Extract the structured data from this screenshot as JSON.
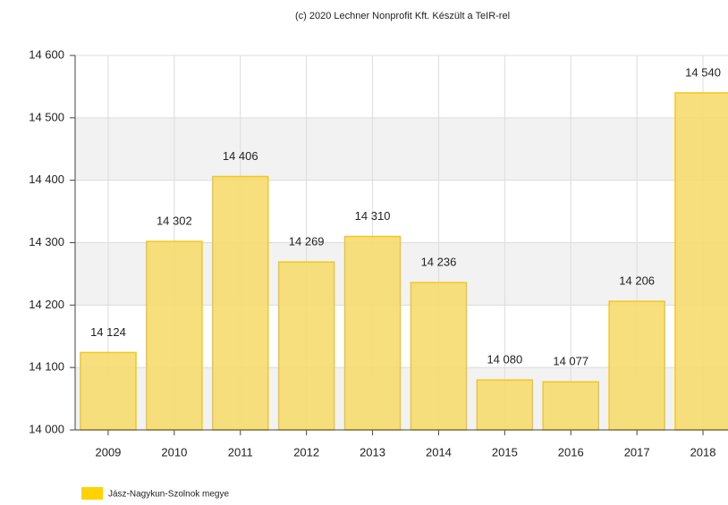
{
  "chart_data": {
    "type": "bar",
    "title": "(c) 2020 Lechner Nonprofit Kft. Készült a TeIR-rel",
    "categories": [
      "2009",
      "2010",
      "2011",
      "2012",
      "2013",
      "2014",
      "2015",
      "2016",
      "2017",
      "2018"
    ],
    "series": [
      {
        "name": "Jász-Nagykun-Szolnok megye",
        "color": "#f7dc6f",
        "values": [
          14124,
          14302,
          14406,
          14269,
          14310,
          14236,
          14080,
          14077,
          14206,
          14540
        ],
        "value_labels": [
          "14 124",
          "14 302",
          "14 406",
          "14 269",
          "14 310",
          "14 236",
          "14 080",
          "14 077",
          "14 206",
          "14 540"
        ]
      }
    ],
    "ylim": [
      14000,
      14600
    ],
    "yticks": [
      {
        "value": 14000,
        "label": "14 000"
      },
      {
        "value": 14100,
        "label": "14 100"
      },
      {
        "value": 14200,
        "label": "14 200"
      },
      {
        "value": 14300,
        "label": "14 300"
      },
      {
        "value": 14400,
        "label": "14 400"
      },
      {
        "value": 14500,
        "label": "14 500"
      },
      {
        "value": 14600,
        "label": "14 600"
      }
    ],
    "grid": true,
    "legend": "bottom-left"
  }
}
